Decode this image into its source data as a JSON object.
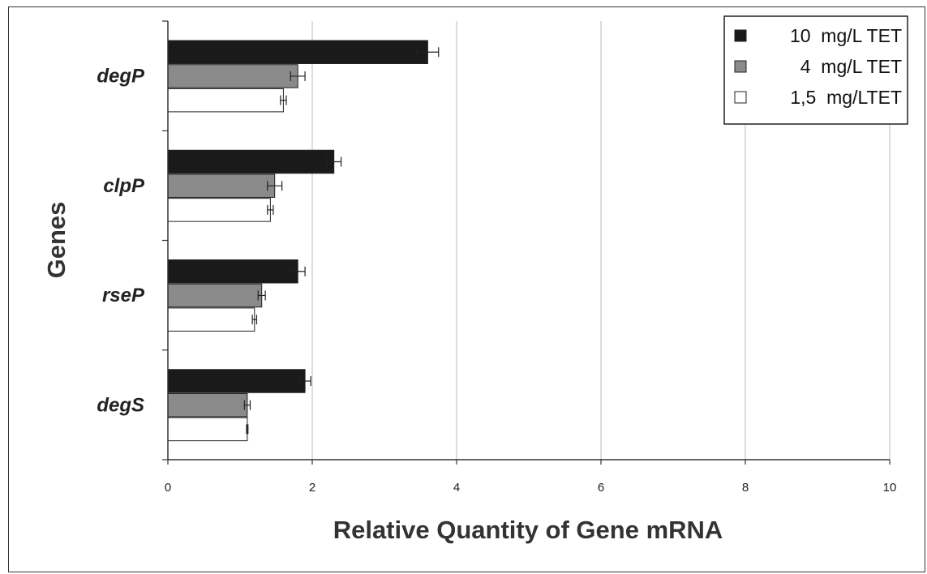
{
  "chart_data": {
    "type": "bar",
    "orientation": "horizontal",
    "categories": [
      "degP",
      "clpP",
      "rseP",
      "degS"
    ],
    "xlabel": "Relative Quantity of Gene mRNA",
    "ylabel": "Genes",
    "xlim": [
      0,
      10
    ],
    "xticks": [
      0,
      2,
      4,
      6,
      8,
      10
    ],
    "grid": "vertical",
    "legend_position": "top-right",
    "series": [
      {
        "name": "10  mg/L TET",
        "color": "#1a1a1a",
        "values": [
          3.6,
          2.3,
          1.8,
          1.9
        ],
        "errors": [
          0.15,
          0.1,
          0.1,
          0.08
        ]
      },
      {
        "name": "4  mg/L TET",
        "color": "#8a8a8a",
        "values": [
          1.8,
          1.48,
          1.3,
          1.1
        ],
        "errors": [
          0.1,
          0.1,
          0.05,
          0.04
        ]
      },
      {
        "name": "1,5  mg/LTET",
        "color": "#ffffff",
        "values": [
          1.6,
          1.42,
          1.2,
          1.1
        ],
        "errors": [
          0.04,
          0.04,
          0.03,
          0.01
        ]
      }
    ]
  }
}
